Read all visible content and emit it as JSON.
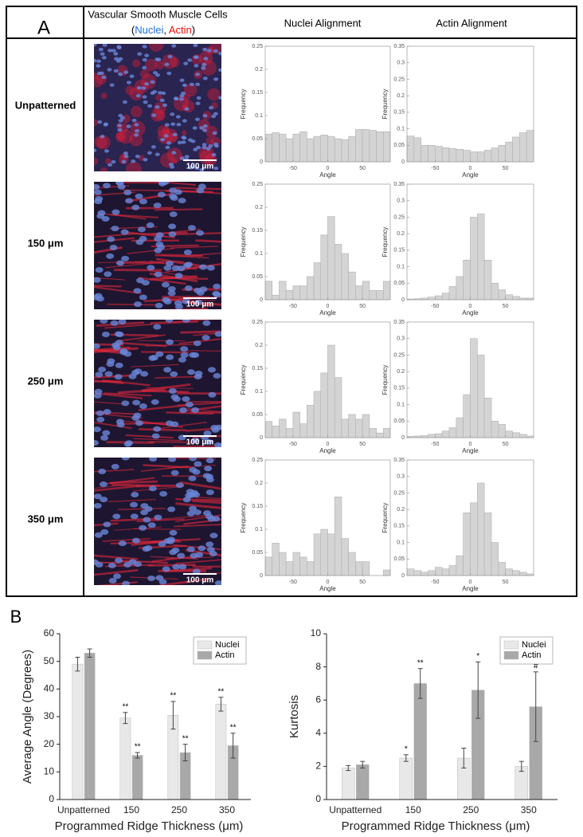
{
  "panel_a": {
    "label": "A",
    "header_image": "Vascular Smooth Muscle Cells",
    "stain_open": "(",
    "stain_nuclei": "Nuclei",
    "stain_sep": ", ",
    "stain_actin": "Actin",
    "stain_close": ")",
    "col_nuclei": "Nuclei Alignment",
    "col_actin": "Actin Alignment",
    "rows": [
      "Unpatterned",
      "150 μm",
      "250 μm",
      "350 μm"
    ],
    "scale_bar": "100 μm"
  },
  "panel_b": {
    "label": "B"
  },
  "chart_data": [
    {
      "type": "histogram",
      "xlabel": "Angle",
      "ylabel": "Frequency",
      "color": "#d4d4d4",
      "bins": [
        -90,
        -80,
        -70,
        -60,
        -50,
        -40,
        -30,
        -20,
        -10,
        0,
        10,
        20,
        30,
        40,
        50,
        60,
        70,
        80,
        90
      ],
      "values": [
        0.06,
        0.063,
        0.06,
        0.05,
        0.06,
        0.065,
        0.05,
        0.055,
        0.058,
        0.055,
        0.05,
        0.048,
        0.055,
        0.07,
        0.07,
        0.068,
        0.065,
        0.065
      ],
      "xlim": [
        -90,
        90
      ],
      "xticks": [
        -50,
        0,
        50
      ],
      "ylim": [
        0,
        0.25
      ],
      "yticks": [
        0,
        0.05,
        0.1,
        0.15,
        0.2,
        0.25
      ],
      "grid": false
    },
    {
      "type": "histogram",
      "xlabel": "Angle",
      "ylabel": "Frequency",
      "color": "#d4d4d4",
      "bins": [
        -90,
        -80,
        -70,
        -60,
        -50,
        -40,
        -30,
        -20,
        -10,
        0,
        10,
        20,
        30,
        40,
        50,
        60,
        70,
        80,
        90
      ],
      "values": [
        0.078,
        0.073,
        0.05,
        0.05,
        0.047,
        0.043,
        0.04,
        0.038,
        0.035,
        0.03,
        0.03,
        0.035,
        0.042,
        0.05,
        0.06,
        0.075,
        0.088,
        0.095
      ],
      "xlim": [
        -90,
        90
      ],
      "xticks": [
        -50,
        0,
        50
      ],
      "ylim": [
        0,
        0.35
      ],
      "yticks": [
        0,
        0.05,
        0.1,
        0.15,
        0.2,
        0.25,
        0.3,
        0.35
      ],
      "grid": false
    },
    {
      "type": "histogram",
      "xlabel": "Angle",
      "ylabel": "Frequency",
      "color": "#d4d4d4",
      "bins": [
        -90,
        -80,
        -70,
        -60,
        -50,
        -40,
        -30,
        -20,
        -10,
        0,
        10,
        20,
        30,
        40,
        50,
        60,
        70,
        80,
        90
      ],
      "values": [
        0.04,
        0.01,
        0.04,
        0.02,
        0.03,
        0.03,
        0.05,
        0.08,
        0.14,
        0.18,
        0.12,
        0.1,
        0.06,
        0.03,
        0.04,
        0.02,
        0.02,
        0.04
      ],
      "xlim": [
        -90,
        90
      ],
      "xticks": [
        -50,
        0,
        50
      ],
      "ylim": [
        0,
        0.25
      ],
      "yticks": [
        0,
        0.05,
        0.1,
        0.15,
        0.2,
        0.25
      ],
      "grid": false
    },
    {
      "type": "histogram",
      "xlabel": "Angle",
      "ylabel": "Frequency",
      "color": "#d4d4d4",
      "bins": [
        -90,
        -80,
        -70,
        -60,
        -50,
        -40,
        -30,
        -20,
        -10,
        0,
        10,
        20,
        30,
        40,
        50,
        60,
        70,
        80,
        90
      ],
      "values": [
        0.002,
        0.003,
        0.005,
        0.008,
        0.012,
        0.02,
        0.04,
        0.07,
        0.12,
        0.25,
        0.26,
        0.12,
        0.05,
        0.03,
        0.015,
        0.01,
        0.005,
        0.005
      ],
      "xlim": [
        -90,
        90
      ],
      "xticks": [
        -50,
        0,
        50
      ],
      "ylim": [
        0,
        0.35
      ],
      "yticks": [
        0,
        0.05,
        0.1,
        0.15,
        0.2,
        0.25,
        0.3,
        0.35
      ],
      "grid": false
    },
    {
      "type": "histogram",
      "xlabel": "Angle",
      "ylabel": "Frequency",
      "color": "#d4d4d4",
      "bins": [
        -90,
        -80,
        -70,
        -60,
        -50,
        -40,
        -30,
        -20,
        -10,
        0,
        10,
        20,
        30,
        40,
        50,
        60,
        70,
        80,
        90
      ],
      "values": [
        0.035,
        0.025,
        0.04,
        0.02,
        0.055,
        0.03,
        0.07,
        0.1,
        0.14,
        0.2,
        0.13,
        0.04,
        0.05,
        0.04,
        0.05,
        0.02,
        0.01,
        0.02
      ],
      "xlim": [
        -90,
        90
      ],
      "xticks": [
        -50,
        0,
        50
      ],
      "ylim": [
        0,
        0.25
      ],
      "yticks": [
        0,
        0.05,
        0.1,
        0.15,
        0.2,
        0.25
      ],
      "grid": false
    },
    {
      "type": "histogram",
      "xlabel": "Angle",
      "ylabel": "Frequency",
      "color": "#d4d4d4",
      "bins": [
        -90,
        -80,
        -70,
        -60,
        -50,
        -40,
        -30,
        -20,
        -10,
        0,
        10,
        20,
        30,
        40,
        50,
        60,
        70,
        80,
        90
      ],
      "values": [
        0.004,
        0.005,
        0.006,
        0.01,
        0.012,
        0.02,
        0.03,
        0.06,
        0.13,
        0.3,
        0.25,
        0.12,
        0.05,
        0.04,
        0.02,
        0.015,
        0.01,
        0.005
      ],
      "xlim": [
        -90,
        90
      ],
      "xticks": [
        -50,
        0,
        50
      ],
      "ylim": [
        0,
        0.35
      ],
      "yticks": [
        0,
        0.05,
        0.1,
        0.15,
        0.2,
        0.25,
        0.3,
        0.35
      ],
      "grid": false
    },
    {
      "type": "histogram",
      "xlabel": "Angle",
      "ylabel": "Frequency",
      "color": "#d4d4d4",
      "bins": [
        -90,
        -80,
        -70,
        -60,
        -50,
        -40,
        -30,
        -20,
        -10,
        0,
        10,
        20,
        30,
        40,
        50,
        60,
        70,
        80,
        90
      ],
      "values": [
        0.04,
        0.07,
        0.05,
        0.03,
        0.05,
        0.04,
        0.03,
        0.09,
        0.1,
        0.09,
        0.17,
        0.08,
        0.05,
        0.03,
        0.03,
        0,
        0,
        0.012
      ],
      "xlim": [
        -90,
        90
      ],
      "xticks": [
        -50,
        0,
        50
      ],
      "ylim": [
        0,
        0.25
      ],
      "yticks": [
        0,
        0.05,
        0.1,
        0.15,
        0.2,
        0.25
      ],
      "grid": false
    },
    {
      "type": "histogram",
      "xlabel": "Angle",
      "ylabel": "Frequency",
      "color": "#d4d4d4",
      "bins": [
        -90,
        -80,
        -70,
        -60,
        -50,
        -40,
        -30,
        -20,
        -10,
        0,
        10,
        20,
        30,
        40,
        50,
        60,
        70,
        80,
        90
      ],
      "values": [
        0.02,
        0.015,
        0.01,
        0.015,
        0.025,
        0.02,
        0.03,
        0.06,
        0.19,
        0.22,
        0.28,
        0.19,
        0.1,
        0.04,
        0.02,
        0.015,
        0.01,
        0.005
      ],
      "xlim": [
        -90,
        90
      ],
      "xticks": [
        -50,
        0,
        50
      ],
      "ylim": [
        0,
        0.35
      ],
      "yticks": [
        0,
        0.05,
        0.1,
        0.15,
        0.2,
        0.25,
        0.3,
        0.35
      ],
      "grid": false
    },
    {
      "type": "bar",
      "ylabel": "Average Angle (Degrees)",
      "xlabel": "Programmed Ridge Thickness (μm)",
      "categories": [
        "Unpatterned",
        "150",
        "250",
        "350"
      ],
      "series": [
        {
          "name": "Nuclei",
          "color": "#e8e8e8",
          "values": [
            49,
            29.5,
            30.5,
            34.5
          ],
          "errors": [
            2.5,
            2,
            5,
            2.5
          ],
          "annotations": [
            null,
            "**",
            "**",
            "**"
          ]
        },
        {
          "name": "Actin",
          "color": "#a8a8a8",
          "values": [
            53,
            16,
            17,
            19.5
          ],
          "errors": [
            1.5,
            1,
            3,
            4.5
          ],
          "annotations": [
            null,
            "**",
            "**",
            "**"
          ]
        }
      ],
      "ylim": [
        0,
        60
      ],
      "yticks": [
        0,
        10,
        20,
        30,
        40,
        50,
        60
      ],
      "legend": "upper right"
    },
    {
      "type": "bar",
      "ylabel": "Kurtosis",
      "xlabel": "Programmed Ridge Thickness (μm)",
      "categories": [
        "Unpatterned",
        "150",
        "250",
        "350"
      ],
      "series": [
        {
          "name": "Nuclei",
          "color": "#e8e8e8",
          "values": [
            1.9,
            2.5,
            2.5,
            2.0
          ],
          "errors": [
            0.15,
            0.2,
            0.6,
            0.3
          ],
          "annotations": [
            null,
            "*",
            null,
            null
          ]
        },
        {
          "name": "Actin",
          "color": "#a8a8a8",
          "values": [
            2.1,
            7.0,
            6.6,
            5.6
          ],
          "errors": [
            0.2,
            0.9,
            1.7,
            2.1
          ],
          "annotations": [
            null,
            "**",
            "*",
            "#"
          ]
        }
      ],
      "ylim": [
        0,
        10
      ],
      "yticks": [
        0,
        2,
        4,
        6,
        8,
        10
      ],
      "legend": "upper right"
    }
  ]
}
